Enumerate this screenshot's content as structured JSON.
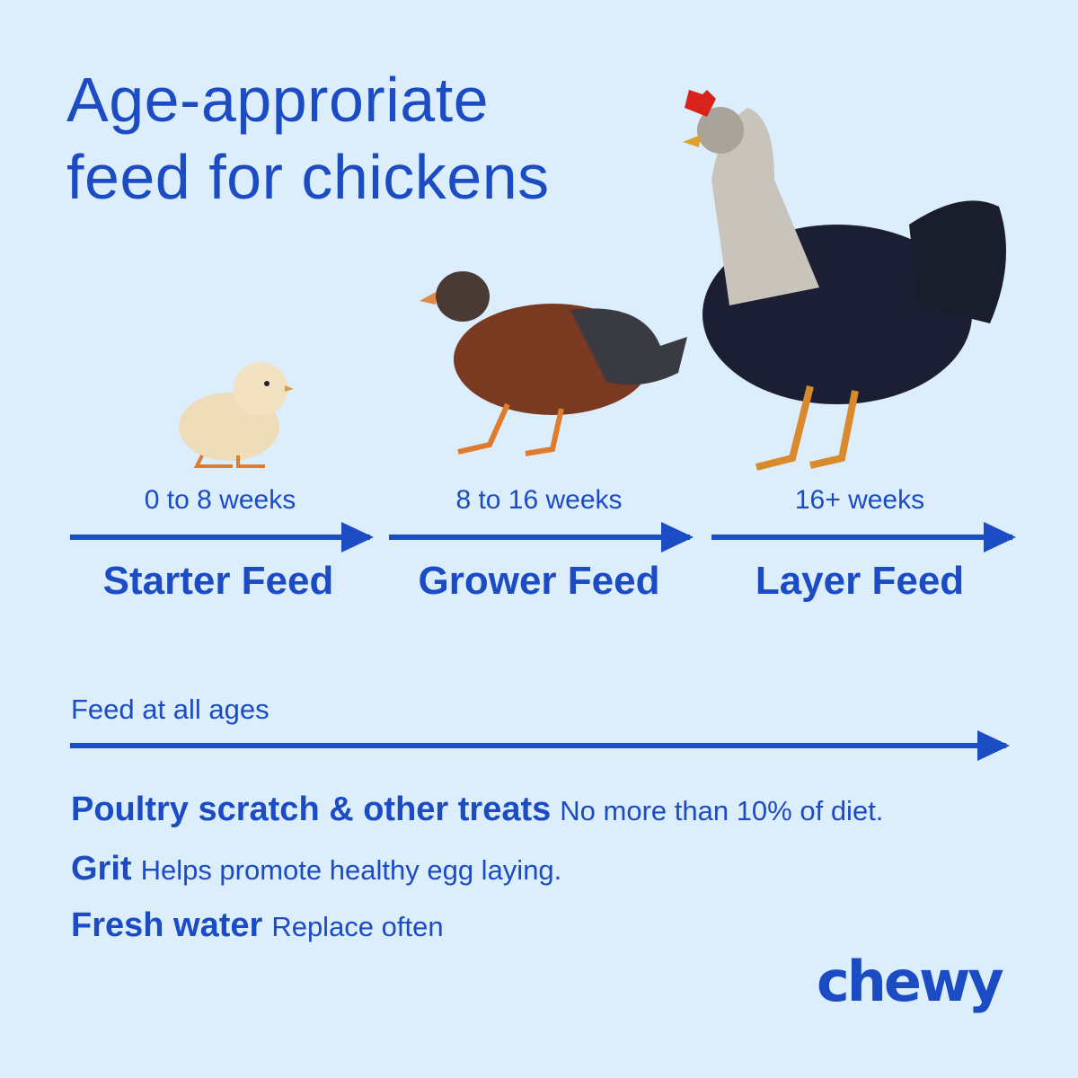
{
  "title": {
    "line1": "Age-approriate",
    "line2": "feed for chickens"
  },
  "stages": [
    {
      "age": "0 to 8 weeks",
      "feed": "Starter Feed",
      "image": "chick"
    },
    {
      "age": "8 to 16 weeks",
      "feed": "Grower Feed",
      "image": "pullet"
    },
    {
      "age": "16+ weeks",
      "feed": "Layer Feed",
      "image": "hen"
    }
  ],
  "all_ages": {
    "label": "Feed at all ages",
    "items": [
      {
        "name": "Poultry scratch & other treats",
        "note": "No more than 10% of diet."
      },
      {
        "name": "Grit",
        "note": "Helps promote healthy egg laying."
      },
      {
        "name": "Fresh water",
        "note": "Replace often"
      }
    ]
  },
  "brand": {
    "logo": "chewy"
  },
  "colors": {
    "background": "#dcedfc",
    "accent": "#1c4cc4"
  }
}
